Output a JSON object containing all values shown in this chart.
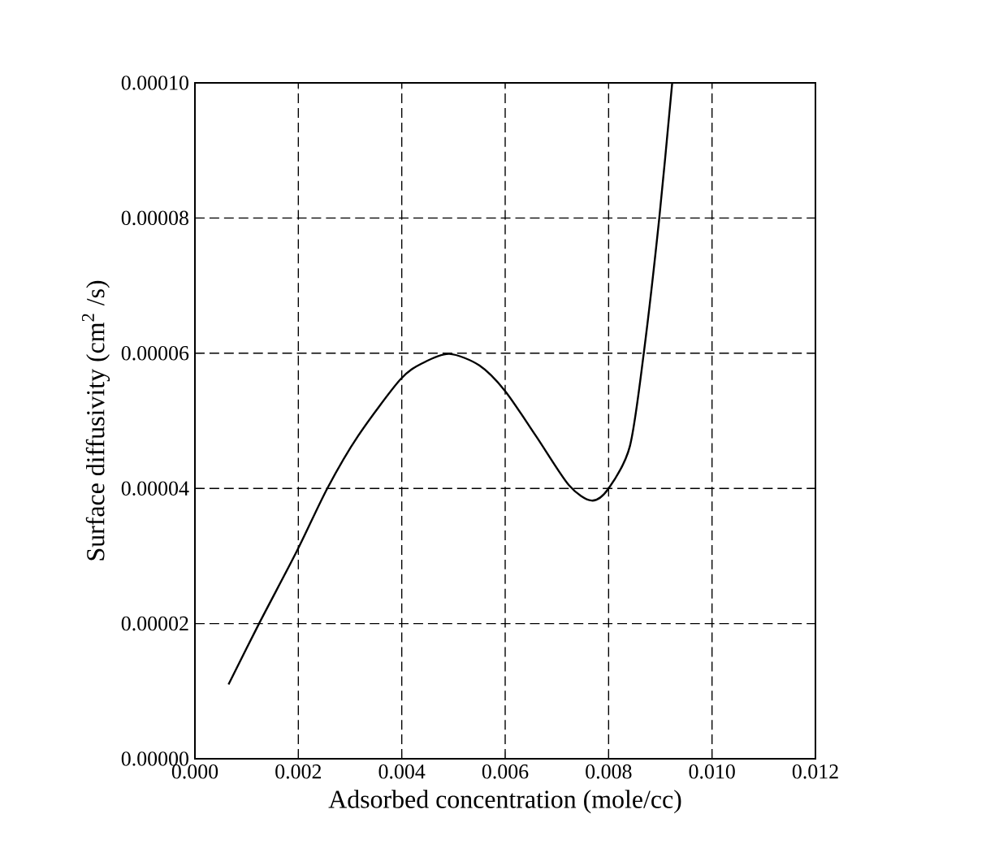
{
  "chart_data": {
    "type": "line",
    "xlabel": "Adsorbed concentration (mole/cc)",
    "ylabel": "Surface diffusivity (cm$^{2}$ /s)",
    "xlim": [
      0,
      0.012
    ],
    "ylim": [
      0,
      0.0001
    ],
    "xticks": [
      {
        "value": 0,
        "label": "0.000"
      },
      {
        "value": 0.002,
        "label": "0.002"
      },
      {
        "value": 0.004,
        "label": "0.004"
      },
      {
        "value": 0.006,
        "label": "0.006"
      },
      {
        "value": 0.008,
        "label": "0.008"
      },
      {
        "value": 0.01,
        "label": "0.010"
      },
      {
        "value": 0.012,
        "label": "0.012"
      }
    ],
    "yticks": [
      {
        "value": 0,
        "label": "0.00000"
      },
      {
        "value": 2e-05,
        "label": "0.00002"
      },
      {
        "value": 4e-05,
        "label": "0.00004"
      },
      {
        "value": 6e-05,
        "label": "0.00006"
      },
      {
        "value": 8e-05,
        "label": "0.00008"
      },
      {
        "value": 0.0001,
        "label": "0.00010"
      }
    ],
    "grid": true,
    "line_style": "solid",
    "marker": "none",
    "series": [
      {
        "color": "#000000",
        "x": [
          0.00065,
          0.00124,
          0.00197,
          0.00256,
          0.00315,
          0.00397,
          0.00442,
          0.00492,
          0.0055,
          0.006,
          0.0066,
          0.00723,
          0.00767,
          0.008,
          0.00841,
          0.00868,
          0.00898,
          0.00923
        ],
        "values": [
          1.1e-05,
          2e-05,
          3.07e-05,
          4e-05,
          4.77e-05,
          5.61e-05,
          5.86e-05,
          5.99e-05,
          5.82e-05,
          5.44e-05,
          4.77e-05,
          4.05e-05,
          3.82e-05,
          4e-05,
          4.62e-05,
          6e-05,
          8e-05,
          0.0001
        ]
      }
    ]
  }
}
